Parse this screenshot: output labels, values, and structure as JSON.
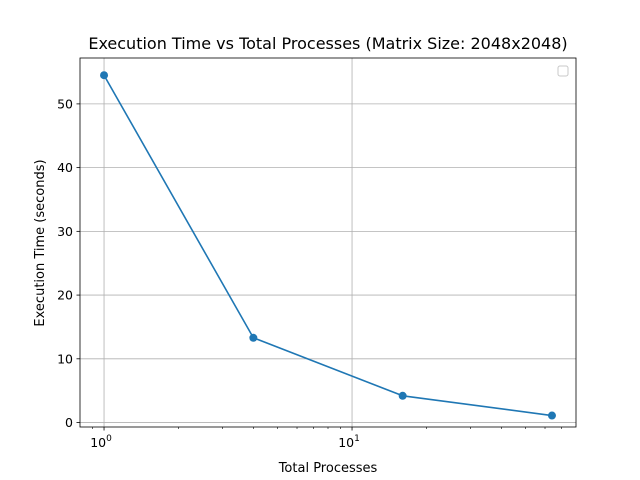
{
  "chart_data": {
    "type": "line",
    "title": "Execution Time vs Total Processes (Matrix Size: 2048x2048)",
    "xlabel": "Total Processes",
    "ylabel": "Execution Time (seconds)",
    "x_scale": "log",
    "xlim": [
      0.8,
      80
    ],
    "ylim": [
      -0.7,
      57.2
    ],
    "x_ticks": [
      {
        "value": 1,
        "base": "10",
        "exp": "0"
      },
      {
        "value": 10,
        "base": "10",
        "exp": "1"
      }
    ],
    "y_ticks": [
      0,
      10,
      20,
      30,
      40,
      50
    ],
    "grid": true,
    "legend": {
      "placement": "upper-right",
      "entries": []
    },
    "series": [
      {
        "color": "#1f77b4",
        "x": [
          1,
          4,
          16,
          64
        ],
        "y": [
          54.5,
          13.3,
          4.2,
          1.1
        ]
      }
    ]
  }
}
